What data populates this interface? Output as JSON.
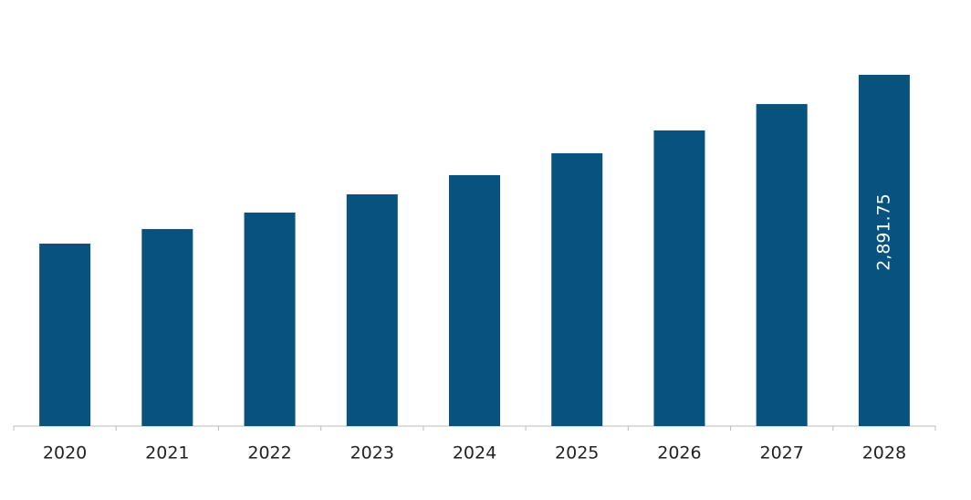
{
  "chart_data": {
    "type": "bar",
    "categories": [
      "2020",
      "2021",
      "2022",
      "2023",
      "2024",
      "2025",
      "2026",
      "2027",
      "2028"
    ],
    "values": [
      1502,
      1622,
      1758,
      1908,
      2066,
      2246,
      2434,
      2651,
      2891.75
    ],
    "value_labels": [
      null,
      null,
      null,
      null,
      null,
      null,
      null,
      null,
      "2,891.75"
    ],
    "color": "#08527f"
  }
}
